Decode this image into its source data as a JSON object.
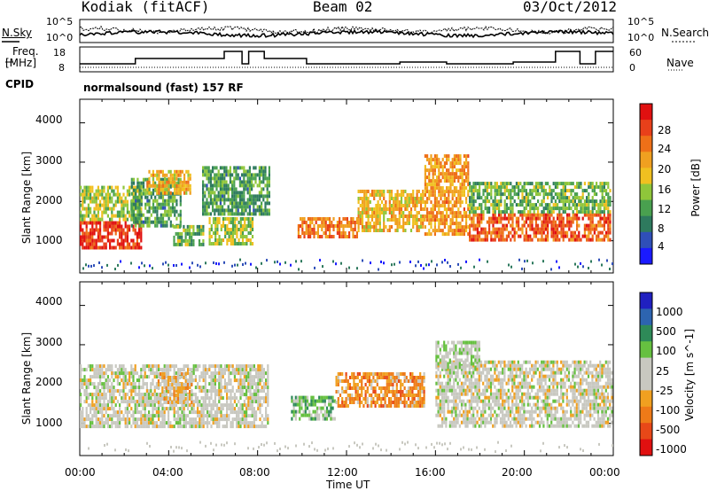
{
  "header": {
    "station": "Kodiak (fitACF)",
    "beam": "Beam 02",
    "date": "03/Oct/2012"
  },
  "noise_panel": {
    "left_label": "N.Sky",
    "right_label": "N.Search",
    "left_ticks": [
      "10^5",
      "10^0"
    ],
    "right_ticks": [
      "10^5",
      "10^0"
    ]
  },
  "freq_panel": {
    "left_label_1": "Freq.",
    "left_label_2": "[MHz]",
    "left_ticks": [
      "18",
      "8"
    ],
    "right_label": "Nave",
    "right_ticks": [
      "60",
      "0"
    ],
    "cpid_label": "CPID",
    "cpid_text": "normalsound (fast) 157 RF"
  },
  "colors": {
    "power_scale": [
      "#1a1aff",
      "#2f4fb8",
      "#2e7a5e",
      "#49a04f",
      "#8fc63a",
      "#f0c020",
      "#f0a020",
      "#ee7018",
      "#e8401a",
      "#e01010"
    ],
    "velocity_scale": [
      "#2020c0",
      "#2d64b0",
      "#2e8a58",
      "#66c040",
      "#c8c8c0",
      "#c8c8c0",
      "#f0a020",
      "#ee7a18",
      "#e84818",
      "#e01010"
    ]
  },
  "chart_data": [
    {
      "type": "heatmap",
      "title": "",
      "xlabel": "",
      "ylabel": "Slant Range [km]",
      "x_ticks": [
        "00:00",
        "04:00",
        "08:00",
        "12:00",
        "16:00",
        "20:00",
        "00:00"
      ],
      "y_ticks": [
        "1000",
        "2000",
        "3000",
        "4000"
      ],
      "ylim": [
        180,
        4600
      ],
      "colorbar": {
        "label": "Power [dB]",
        "ticks": [
          "4",
          "8",
          "12",
          "16",
          "20",
          "24",
          "28"
        ],
        "range": [
          0,
          30
        ]
      },
      "regions": [
        {
          "t0": 0.0,
          "t1": 2.8,
          "r0": 800,
          "r1": 1500,
          "value": 26
        },
        {
          "t0": 0.0,
          "t1": 2.8,
          "r0": 1500,
          "r1": 2400,
          "value": 14
        },
        {
          "t0": 2.3,
          "t1": 4.5,
          "r0": 1400,
          "r1": 2600,
          "value": 10
        },
        {
          "t0": 3.0,
          "t1": 5.0,
          "r0": 2200,
          "r1": 2800,
          "value": 18
        },
        {
          "t0": 4.2,
          "t1": 5.6,
          "r0": 900,
          "r1": 1400,
          "value": 12
        },
        {
          "t0": 5.8,
          "t1": 7.8,
          "r0": 900,
          "r1": 1600,
          "value": 14
        },
        {
          "t0": 5.5,
          "t1": 8.5,
          "r0": 1700,
          "r1": 2900,
          "value": 10
        },
        {
          "t0": 9.8,
          "t1": 12.5,
          "r0": 1100,
          "r1": 1600,
          "value": 22
        },
        {
          "t0": 12.5,
          "t1": 15.5,
          "r0": 1300,
          "r1": 2300,
          "value": 18
        },
        {
          "t0": 15.5,
          "t1": 17.5,
          "r0": 1200,
          "r1": 3200,
          "value": 20
        },
        {
          "t0": 17.5,
          "t1": 23.9,
          "r0": 1000,
          "r1": 1700,
          "value": 24
        },
        {
          "t0": 17.5,
          "t1": 23.9,
          "r0": 1700,
          "r1": 2500,
          "value": 12
        }
      ]
    },
    {
      "type": "heatmap",
      "title": "",
      "xlabel": "Time UT",
      "ylabel": "Slant Range [km]",
      "x_ticks": [
        "00:00",
        "04:00",
        "08:00",
        "12:00",
        "16:00",
        "20:00",
        "00:00"
      ],
      "y_ticks": [
        "1000",
        "2000",
        "3000",
        "4000"
      ],
      "ylim": [
        180,
        4600
      ],
      "colorbar": {
        "label": "Velocity [m s^-1]",
        "ticks": [
          "1000",
          "500",
          "100",
          "25",
          "-25",
          "-100",
          "-500",
          "-1000"
        ],
        "range": [
          -1000,
          1000
        ]
      },
      "regions": [
        {
          "t0": 0.0,
          "t1": 8.5,
          "r0": 900,
          "r1": 2500,
          "value": 0
        },
        {
          "t0": 3.5,
          "t1": 5.0,
          "r0": 1500,
          "r1": 2300,
          "value": -200
        },
        {
          "t0": 9.5,
          "t1": 11.5,
          "r0": 1100,
          "r1": 1700,
          "value": 300
        },
        {
          "t0": 11.5,
          "t1": 15.5,
          "r0": 1400,
          "r1": 2300,
          "value": -400
        },
        {
          "t0": 16.0,
          "t1": 23.9,
          "r0": 900,
          "r1": 2600,
          "value": 0
        },
        {
          "t0": 16.0,
          "t1": 18.0,
          "r0": 2400,
          "r1": 3100,
          "value": 100
        }
      ]
    }
  ]
}
